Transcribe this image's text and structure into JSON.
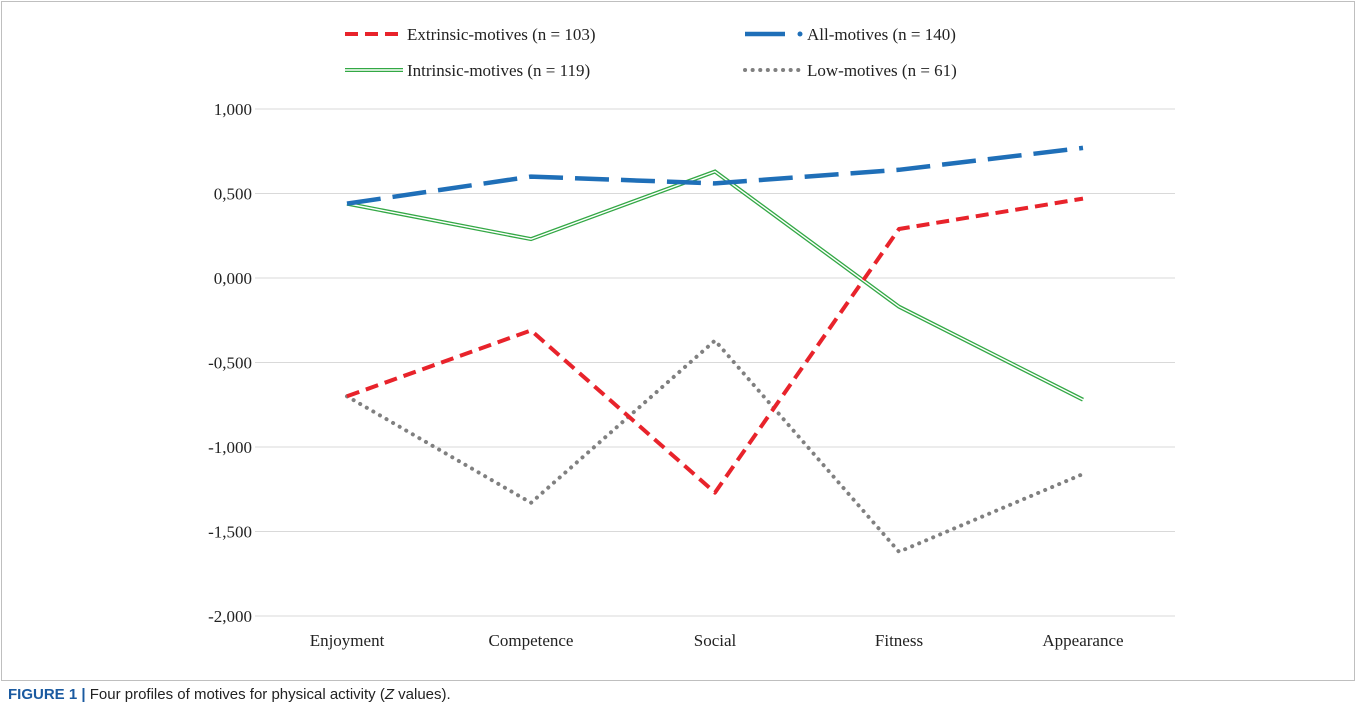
{
  "chart_data": {
    "type": "line",
    "categories": [
      "Enjoyment",
      "Competence",
      "Social",
      "Fitness",
      "Appearance"
    ],
    "series": [
      {
        "name": "Extrinsic-motives (n = 103)",
        "color": "#e8232b",
        "style": "dashed",
        "values": [
          -0.7,
          -0.31,
          -1.27,
          0.29,
          0.47
        ]
      },
      {
        "name": "All-motives (n = 140)",
        "color": "#1f6fb8",
        "style": "long-dash-dot",
        "values": [
          0.44,
          0.6,
          0.56,
          0.64,
          0.77
        ]
      },
      {
        "name": "Intrinsic-motives (n = 119)",
        "color": "#33a845",
        "style": "double",
        "values": [
          0.44,
          0.23,
          0.63,
          -0.17,
          -0.72
        ]
      },
      {
        "name": "Low-motives (n = 61)",
        "color": "#808080",
        "style": "dotted",
        "values": [
          -0.7,
          -1.33,
          -0.37,
          -1.62,
          -1.16
        ]
      }
    ],
    "y_ticks": [
      "1,000",
      "0,500",
      "0,000",
      "-0,500",
      "-1,000",
      "-1,500",
      "-2,000"
    ],
    "ylim": [
      -2.0,
      1.0
    ],
    "grid": true,
    "legend_position": "top"
  },
  "caption": {
    "label": "FIGURE 1",
    "separator": "|",
    "text_before": "Four profiles of motives for physical activity (",
    "italic": "Z",
    "text_after": " values)."
  }
}
